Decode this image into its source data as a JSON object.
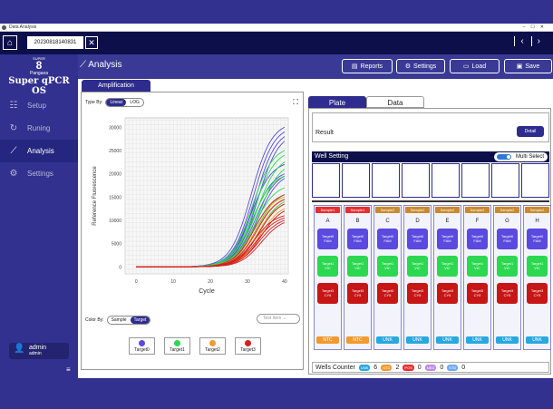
{
  "window": {
    "title": "Data Analysis"
  },
  "tabbar": {
    "file_tab": "20230818140831"
  },
  "sidebar": {
    "logo_top": "SUPER",
    "logo_mark": "8",
    "logo_brand": "Pangaea",
    "logo_os": "Super qPCR OS",
    "items": [
      {
        "label": "Setup",
        "icon": "sliders-icon"
      },
      {
        "label": "Runing",
        "icon": "refresh-icon"
      },
      {
        "label": "Analysis",
        "icon": "chart-line-icon"
      },
      {
        "label": "Settings",
        "icon": "gear-icon"
      }
    ],
    "user_name": "admin",
    "user_role": "admin"
  },
  "header": {
    "title": "Analysis",
    "buttons": {
      "reports": "Reports",
      "settings": "Settings",
      "load": "Load",
      "save": "Save"
    }
  },
  "left": {
    "tab": "Amplification",
    "type_by_label": "Type By:",
    "type_options": [
      "Linear",
      "LOG"
    ],
    "color_by_label": "Color By:",
    "color_options": [
      "Sample",
      "Target"
    ],
    "test_item_placeholder": "Test Item",
    "legend": [
      {
        "label": "Target0",
        "color": "#5b4ae0"
      },
      {
        "label": "Target1",
        "color": "#2bd84f"
      },
      {
        "label": "Target2",
        "color": "#f29a2e"
      },
      {
        "label": "Target3",
        "color": "#d61e1e"
      }
    ]
  },
  "chart_data": {
    "type": "line",
    "xlabel": "Cycle",
    "ylabel": "Reference Fluorescence",
    "xlim": [
      -3,
      41
    ],
    "ylim": [
      -1500,
      32000
    ],
    "xticks": [
      0,
      10,
      20,
      30,
      40
    ],
    "yticks": [
      0,
      5000,
      10000,
      15000,
      20000,
      25000,
      30000
    ],
    "grid": true,
    "series": [
      {
        "name": "Target0",
        "color": "#5b4ae0",
        "final_values": [
          30000,
          29000,
          28000,
          27000,
          22000,
          20000,
          19500,
          19000
        ]
      },
      {
        "name": "Target1",
        "color": "#2bd84f",
        "final_values": [
          25000,
          24000,
          22500,
          21000,
          19500,
          17000,
          15500,
          14000
        ]
      },
      {
        "name": "Target2",
        "color": "#f29a2e",
        "final_values": [
          15000,
          14500,
          13500,
          12500
        ]
      },
      {
        "name": "Target3",
        "color": "#d61e1e",
        "final_values": [
          15500,
          14500,
          13500,
          12000,
          11000,
          10500,
          10000,
          9500
        ]
      }
    ]
  },
  "right": {
    "tabs": [
      "Plate",
      "Data"
    ],
    "result_label": "Result",
    "detail_button": "Detail",
    "well_setting": "Well Setting",
    "multi_select": "Multi Select",
    "columns": [
      {
        "sample": "Sample1",
        "sample_color": "#e53030",
        "letter": "A",
        "bottom": "NTC",
        "bottom_color": "#f29a2e"
      },
      {
        "sample": "Sample1",
        "sample_color": "#e53030",
        "letter": "B",
        "bottom": "NTC",
        "bottom_color": "#f29a2e"
      },
      {
        "sample": "Sample2",
        "sample_color": "#c98a2e",
        "letter": "C",
        "bottom": "UNK",
        "bottom_color": "#29a8e0"
      },
      {
        "sample": "Sample2",
        "sample_color": "#c98a2e",
        "letter": "D",
        "bottom": "UNK",
        "bottom_color": "#29a8e0"
      },
      {
        "sample": "Sample2",
        "sample_color": "#c98a2e",
        "letter": "E",
        "bottom": "UNK",
        "bottom_color": "#29a8e0"
      },
      {
        "sample": "Sample2",
        "sample_color": "#c98a2e",
        "letter": "F",
        "bottom": "UNK",
        "bottom_color": "#29a8e0"
      },
      {
        "sample": "Sample2",
        "sample_color": "#c98a2e",
        "letter": "G",
        "bottom": "UNK",
        "bottom_color": "#29a8e0"
      },
      {
        "sample": "Sample2",
        "sample_color": "#c98a2e",
        "letter": "H",
        "bottom": "UNK",
        "bottom_color": "#29a8e0"
      }
    ],
    "targets": [
      {
        "label": "Target0",
        "sub": "FAM",
        "color": "#5b4ae0"
      },
      {
        "label": "Target1",
        "sub": "VIC",
        "color": "#2bd84f"
      },
      {
        "label": "Target3",
        "sub": "CY5",
        "color": "#c71616"
      }
    ],
    "wells_counter": {
      "label": "Wells Counter",
      "items": [
        {
          "tag": "UNK",
          "count": "6",
          "color": "#29a8e0"
        },
        {
          "tag": "NTC",
          "count": "2",
          "color": "#f29a2e"
        },
        {
          "tag": "POS",
          "count": "0",
          "color": "#e53030"
        },
        {
          "tag": "NEG",
          "count": "0",
          "color": "#c28ae8"
        },
        {
          "tag": "STD",
          "count": "0",
          "color": "#6fa8f0"
        }
      ]
    }
  }
}
